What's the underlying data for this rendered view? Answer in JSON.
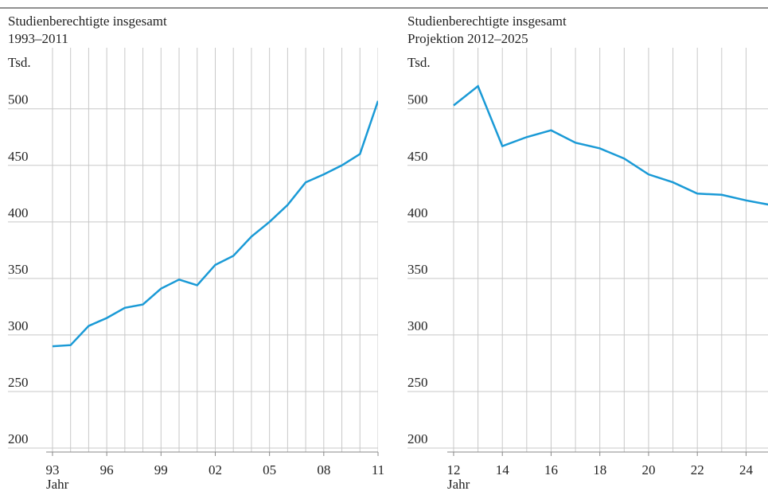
{
  "chart_data": [
    {
      "type": "line",
      "title": "Studienberechtigte insgesamt",
      "subtitle": "1993–2011",
      "y_unit": "Tsd.",
      "xlabel": "Jahr",
      "x": [
        1993,
        1994,
        1995,
        1996,
        1997,
        1998,
        1999,
        2000,
        2001,
        2002,
        2003,
        2004,
        2005,
        2006,
        2007,
        2008,
        2009,
        2010,
        2011
      ],
      "series": [
        {
          "name": "Studienberechtigte",
          "color": "#1a9ad6",
          "values": [
            290,
            291,
            308,
            315,
            324,
            327,
            341,
            349,
            344,
            362,
            370,
            387,
            400,
            415,
            435,
            442,
            450,
            460,
            507
          ]
        }
      ],
      "xlim": [
        1992.65,
        2011
      ],
      "xticks": [
        {
          "value": 1993,
          "label": "93"
        },
        {
          "value": 1996,
          "label": "96"
        },
        {
          "value": 1999,
          "label": "99"
        },
        {
          "value": 2002,
          "label": "02"
        },
        {
          "value": 2005,
          "label": "05"
        },
        {
          "value": 2008,
          "label": "08"
        },
        {
          "value": 2011,
          "label": "11"
        }
      ],
      "ylim": [
        196.5,
        554
      ],
      "yticks": [
        200,
        250,
        300,
        350,
        400,
        450,
        500
      ],
      "grid": true
    },
    {
      "type": "line",
      "title": "Studienberechtigte insgesamt",
      "subtitle": "Projektion 2012–2025",
      "y_unit": "Tsd.",
      "xlabel": "Jahr",
      "x": [
        2012,
        2013,
        2014,
        2015,
        2016,
        2017,
        2018,
        2019,
        2020,
        2021,
        2022,
        2023,
        2024,
        2025
      ],
      "series": [
        {
          "name": "Studienberechtigte",
          "color": "#1a9ad6",
          "values": [
            503,
            520,
            467,
            475,
            481,
            470,
            465,
            456,
            442,
            435,
            425,
            424,
            419,
            415
          ]
        }
      ],
      "xlim": [
        2011.74,
        2024.9
      ],
      "xticks": [
        {
          "value": 2012,
          "label": "12"
        },
        {
          "value": 2014,
          "label": "14"
        },
        {
          "value": 2016,
          "label": "16"
        },
        {
          "value": 2018,
          "label": "18"
        },
        {
          "value": 2020,
          "label": "20"
        },
        {
          "value": 2022,
          "label": "22"
        },
        {
          "value": 2024,
          "label": "24"
        }
      ],
      "ylim": [
        196.5,
        554
      ],
      "yticks": [
        200,
        250,
        300,
        350,
        400,
        450,
        500
      ],
      "grid": true
    }
  ]
}
